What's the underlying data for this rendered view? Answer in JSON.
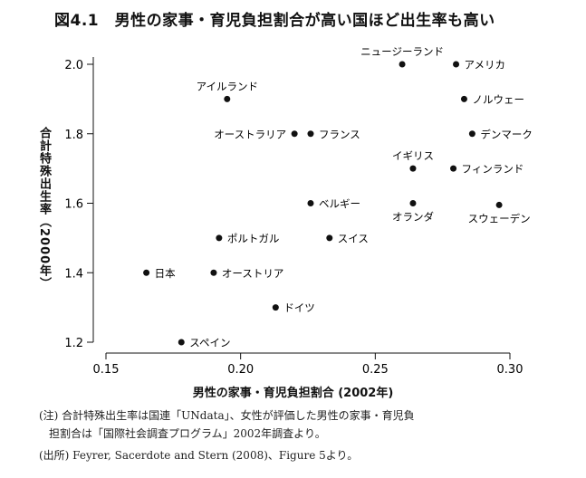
{
  "chart_data": {
    "type": "scatter",
    "title": "図4.1　男性の家事・育児負担割合が高い国ほど出生率も高い",
    "xlabel": "男性の家事・育児負担割合 (2002年)",
    "ylabel": "合計特殊出生率（2000年）",
    "xlim": [
      0.15,
      0.3
    ],
    "ylim": [
      1.2,
      2.0
    ],
    "xticks": [
      "0.15",
      "0.20",
      "0.25",
      "0.30"
    ],
    "yticks": [
      "1.2",
      "1.4",
      "1.6",
      "1.8",
      "2.0"
    ],
    "grid": false,
    "points": [
      {
        "label": "ニュージーランド",
        "x": 0.26,
        "y": 2.0,
        "pos": "above"
      },
      {
        "label": "アメリカ",
        "x": 0.28,
        "y": 2.0,
        "pos": "right"
      },
      {
        "label": "アイルランド",
        "x": 0.195,
        "y": 1.9,
        "pos": "above"
      },
      {
        "label": "ノルウェー",
        "x": 0.283,
        "y": 1.9,
        "pos": "right"
      },
      {
        "label": "オーストラリア",
        "x": 0.22,
        "y": 1.8,
        "pos": "left"
      },
      {
        "label": "フランス",
        "x": 0.226,
        "y": 1.8,
        "pos": "right"
      },
      {
        "label": "デンマーク",
        "x": 0.286,
        "y": 1.8,
        "pos": "right"
      },
      {
        "label": "イギリス",
        "x": 0.264,
        "y": 1.7,
        "pos": "above"
      },
      {
        "label": "フィンランド",
        "x": 0.279,
        "y": 1.7,
        "pos": "right"
      },
      {
        "label": "ベルギー",
        "x": 0.226,
        "y": 1.6,
        "pos": "right"
      },
      {
        "label": "オランダ",
        "x": 0.264,
        "y": 1.6,
        "pos": "below"
      },
      {
        "label": "スウェーデン",
        "x": 0.296,
        "y": 1.595,
        "pos": "below"
      },
      {
        "label": "ポルトガル",
        "x": 0.192,
        "y": 1.5,
        "pos": "right"
      },
      {
        "label": "スイス",
        "x": 0.233,
        "y": 1.5,
        "pos": "right"
      },
      {
        "label": "日本",
        "x": 0.165,
        "y": 1.4,
        "pos": "right"
      },
      {
        "label": "オーストリア",
        "x": 0.19,
        "y": 1.4,
        "pos": "right"
      },
      {
        "label": "ドイツ",
        "x": 0.213,
        "y": 1.3,
        "pos": "right"
      },
      {
        "label": "スペイン",
        "x": 0.178,
        "y": 1.2,
        "pos": "right"
      }
    ]
  },
  "notes": {
    "line1": "(注) 合計特殊出生率は国連「UNdata」、女性が評価した男性の家事・育児負",
    "line2": "担割合は「国際社会調査プログラム」2002年調査より。",
    "source": "(出所) Feyrer, Sacerdote and Stern (2008)、Figure 5より。"
  }
}
